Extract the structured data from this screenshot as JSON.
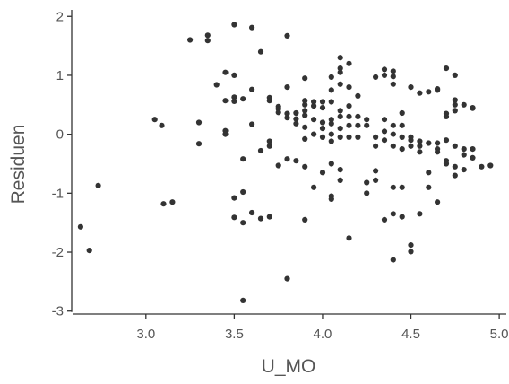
{
  "chart_data": {
    "type": "scatter",
    "xlabel": "U_MO",
    "ylabel": "Residuen",
    "xlim": [
      2.58,
      5.04
    ],
    "ylim": [
      -3.05,
      2.08
    ],
    "xticks": [
      3.0,
      3.5,
      4.0,
      4.5,
      5.0
    ],
    "xtick_labels": [
      "3.0",
      "3.5",
      "4.0",
      "4.5",
      "5.0"
    ],
    "yticks": [
      -3,
      -2,
      -1,
      0,
      1,
      2
    ],
    "ytick_labels": [
      "-3",
      "-2",
      "-1",
      "0",
      "1",
      "2"
    ],
    "grid": false,
    "colors": {
      "points": "#333333",
      "axis": "#333333",
      "text": "#555555"
    },
    "points": [
      [
        2.63,
        -1.57
      ],
      [
        2.68,
        -1.97
      ],
      [
        2.73,
        -0.87
      ],
      [
        3.05,
        0.25
      ],
      [
        3.09,
        0.15
      ],
      [
        3.1,
        -1.18
      ],
      [
        3.15,
        -1.15
      ],
      [
        3.25,
        1.6
      ],
      [
        3.3,
        0.2
      ],
      [
        3.3,
        -0.16
      ],
      [
        3.35,
        1.68
      ],
      [
        3.35,
        1.59
      ],
      [
        3.4,
        0.84
      ],
      [
        3.45,
        1.05
      ],
      [
        3.45,
        0.57
      ],
      [
        3.45,
        0.06
      ],
      [
        3.45,
        0.0
      ],
      [
        3.5,
        1.86
      ],
      [
        3.5,
        1.0
      ],
      [
        3.5,
        0.63
      ],
      [
        3.5,
        0.56
      ],
      [
        3.5,
        -1.08
      ],
      [
        3.5,
        -1.41
      ],
      [
        3.55,
        0.6
      ],
      [
        3.55,
        -0.42
      ],
      [
        3.55,
        -0.98
      ],
      [
        3.55,
        -1.5
      ],
      [
        3.55,
        -2.82
      ],
      [
        3.6,
        1.81
      ],
      [
        3.6,
        0.76
      ],
      [
        3.6,
        0.17
      ],
      [
        3.6,
        -1.33
      ],
      [
        3.65,
        1.4
      ],
      [
        3.65,
        -0.28
      ],
      [
        3.65,
        -1.43
      ],
      [
        3.7,
        0.62
      ],
      [
        3.7,
        0.57
      ],
      [
        3.7,
        -0.12
      ],
      [
        3.7,
        -0.2
      ],
      [
        3.7,
        -1.4
      ],
      [
        3.75,
        0.47
      ],
      [
        3.75,
        0.43
      ],
      [
        3.75,
        0.37
      ],
      [
        3.75,
        -0.53
      ],
      [
        3.8,
        1.67
      ],
      [
        3.8,
        0.8
      ],
      [
        3.8,
        0.35
      ],
      [
        3.8,
        0.28
      ],
      [
        3.8,
        -0.42
      ],
      [
        3.8,
        -2.45
      ],
      [
        3.85,
        0.36
      ],
      [
        3.85,
        0.26
      ],
      [
        3.85,
        0.18
      ],
      [
        3.85,
        -0.45
      ],
      [
        3.9,
        0.95
      ],
      [
        3.9,
        0.57
      ],
      [
        3.9,
        0.5
      ],
      [
        3.9,
        0.4
      ],
      [
        3.9,
        0.32
      ],
      [
        3.9,
        0.12
      ],
      [
        3.9,
        -0.08
      ],
      [
        3.9,
        -0.55
      ],
      [
        3.9,
        -1.45
      ],
      [
        3.95,
        0.55
      ],
      [
        3.95,
        0.48
      ],
      [
        3.95,
        0.25
      ],
      [
        3.95,
        0.0
      ],
      [
        3.95,
        -0.9
      ],
      [
        4.0,
        0.55
      ],
      [
        4.0,
        0.45
      ],
      [
        4.0,
        0.2
      ],
      [
        4.0,
        0.1
      ],
      [
        4.0,
        -0.05
      ],
      [
        4.0,
        -0.65
      ],
      [
        4.05,
        0.97
      ],
      [
        4.05,
        0.75
      ],
      [
        4.05,
        0.55
      ],
      [
        4.05,
        0.25
      ],
      [
        4.05,
        0.18
      ],
      [
        4.05,
        0.0
      ],
      [
        4.05,
        -0.12
      ],
      [
        4.05,
        -0.5
      ],
      [
        4.05,
        -1.05
      ],
      [
        4.05,
        -1.1
      ],
      [
        4.1,
        1.3
      ],
      [
        4.1,
        1.12
      ],
      [
        4.1,
        1.05
      ],
      [
        4.1,
        0.85
      ],
      [
        4.1,
        0.4
      ],
      [
        4.1,
        0.3
      ],
      [
        4.1,
        0.1
      ],
      [
        4.1,
        -0.05
      ],
      [
        4.1,
        -0.6
      ],
      [
        4.1,
        -0.78
      ],
      [
        4.15,
        1.2
      ],
      [
        4.15,
        0.8
      ],
      [
        4.15,
        0.48
      ],
      [
        4.15,
        0.3
      ],
      [
        4.15,
        0.15
      ],
      [
        4.15,
        -0.05
      ],
      [
        4.15,
        -1.76
      ],
      [
        4.2,
        0.65
      ],
      [
        4.2,
        0.3
      ],
      [
        4.2,
        0.15
      ],
      [
        4.2,
        -0.05
      ],
      [
        4.25,
        0.25
      ],
      [
        4.25,
        0.15
      ],
      [
        4.25,
        -0.82
      ],
      [
        4.25,
        -1.0
      ],
      [
        4.3,
        0.97
      ],
      [
        4.3,
        -0.05
      ],
      [
        4.3,
        -0.2
      ],
      [
        4.3,
        -0.62
      ],
      [
        4.3,
        -0.78
      ],
      [
        4.35,
        1.1
      ],
      [
        4.35,
        1.0
      ],
      [
        4.35,
        0.25
      ],
      [
        4.35,
        0.05
      ],
      [
        4.35,
        -0.1
      ],
      [
        4.35,
        -1.45
      ],
      [
        4.4,
        1.07
      ],
      [
        4.4,
        0.98
      ],
      [
        4.4,
        0.85
      ],
      [
        4.4,
        0.15
      ],
      [
        4.4,
        0.0
      ],
      [
        4.4,
        -0.2
      ],
      [
        4.4,
        -0.9
      ],
      [
        4.4,
        -1.35
      ],
      [
        4.4,
        -2.13
      ],
      [
        4.45,
        0.36
      ],
      [
        4.45,
        0.15
      ],
      [
        4.45,
        -0.05
      ],
      [
        4.45,
        -0.25
      ],
      [
        4.45,
        -0.9
      ],
      [
        4.45,
        -1.4
      ],
      [
        4.5,
        0.8
      ],
      [
        4.5,
        -0.05
      ],
      [
        4.5,
        -0.1
      ],
      [
        4.5,
        -0.2
      ],
      [
        4.5,
        -1.88
      ],
      [
        4.5,
        -1.99
      ],
      [
        4.55,
        0.7
      ],
      [
        4.55,
        -0.12
      ],
      [
        4.55,
        -0.2
      ],
      [
        4.55,
        -0.3
      ],
      [
        4.55,
        -1.35
      ],
      [
        4.6,
        0.72
      ],
      [
        4.6,
        -0.15
      ],
      [
        4.6,
        -0.65
      ],
      [
        4.6,
        -0.9
      ],
      [
        4.65,
        0.77
      ],
      [
        4.65,
        0.75
      ],
      [
        4.65,
        -0.15
      ],
      [
        4.65,
        -0.25
      ],
      [
        4.65,
        -0.3
      ],
      [
        4.65,
        -1.15
      ],
      [
        4.7,
        1.12
      ],
      [
        4.7,
        0.35
      ],
      [
        4.7,
        0.3
      ],
      [
        4.7,
        -0.1
      ],
      [
        4.7,
        -0.45
      ],
      [
        4.7,
        -0.5
      ],
      [
        4.75,
        1.0
      ],
      [
        4.75,
        0.58
      ],
      [
        4.75,
        0.5
      ],
      [
        4.75,
        0.4
      ],
      [
        4.75,
        -0.2
      ],
      [
        4.75,
        -0.55
      ],
      [
        4.75,
        -0.7
      ],
      [
        4.8,
        0.5
      ],
      [
        4.8,
        -0.25
      ],
      [
        4.8,
        -0.35
      ],
      [
        4.8,
        -0.6
      ],
      [
        4.85,
        0.45
      ],
      [
        4.85,
        0.44
      ],
      [
        4.85,
        -0.25
      ],
      [
        4.85,
        -0.4
      ],
      [
        4.9,
        -0.55
      ],
      [
        4.95,
        -0.53
      ]
    ]
  }
}
